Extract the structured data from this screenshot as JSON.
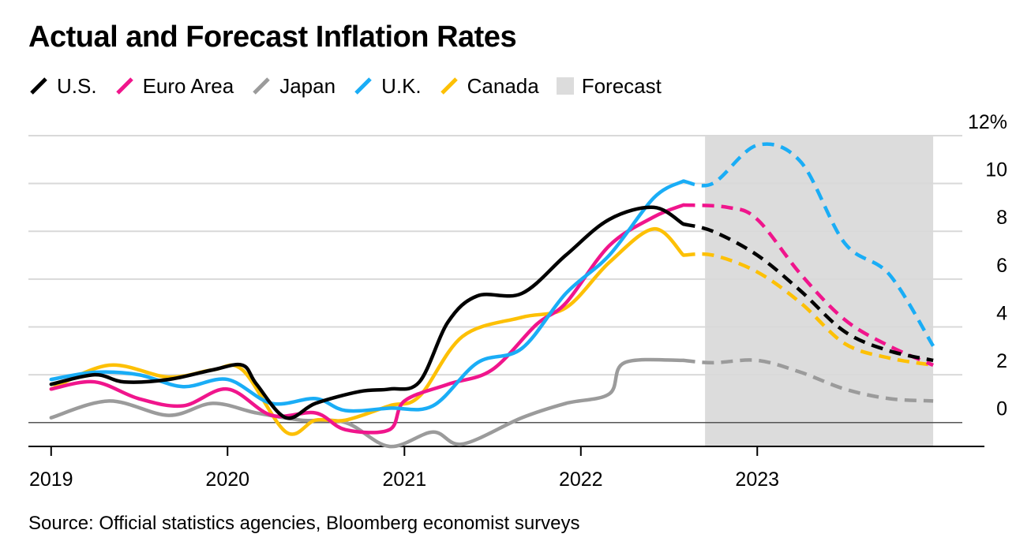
{
  "title": "Actual and Forecast Inflation Rates",
  "source": "Source: Official statistics agencies, Bloomberg economist surveys",
  "legend": [
    {
      "key": "us",
      "label": "U.S.",
      "color": "#000000",
      "icon": "slash-line-icon"
    },
    {
      "key": "euro",
      "label": "Euro Area",
      "color": "#f0158c",
      "icon": "slash-line-icon"
    },
    {
      "key": "japan",
      "label": "Japan",
      "color": "#9b9b9b",
      "icon": "slash-line-icon"
    },
    {
      "key": "uk",
      "label": "U.K.",
      "color": "#1aadf6",
      "icon": "slash-line-icon"
    },
    {
      "key": "canada",
      "label": "Canada",
      "color": "#fdc005",
      "icon": "slash-line-icon"
    },
    {
      "key": "forecast",
      "label": "Forecast",
      "color": "#dcdcdc",
      "icon": "square-swatch-icon"
    }
  ],
  "chart_data": {
    "type": "line",
    "title": "Actual and Forecast Inflation Rates",
    "x_unit": "date",
    "x_ticks": [
      {
        "date": "2019-01-01",
        "label": "2019"
      },
      {
        "date": "2020-01-01",
        "label": "2020"
      },
      {
        "date": "2021-01-01",
        "label": "2021"
      },
      {
        "date": "2022-01-01",
        "label": "2022"
      },
      {
        "date": "2023-01-01",
        "label": "2023"
      }
    ],
    "xlim": [
      "2018-11-15",
      "2024-04-15"
    ],
    "ylim": [
      -1,
      12
    ],
    "y_ticks": [
      {
        "value": 12,
        "label": "12%"
      },
      {
        "value": 10,
        "label": "10"
      },
      {
        "value": 8,
        "label": "8"
      },
      {
        "value": 6,
        "label": "6"
      },
      {
        "value": 4,
        "label": "4"
      },
      {
        "value": 2,
        "label": "2"
      },
      {
        "value": 0,
        "label": "0"
      }
    ],
    "y_axis_side": "right",
    "grid": true,
    "legend_position": "top-left",
    "forecast_region": {
      "start": "2022-09-15",
      "end": "2023-12-31"
    },
    "series": [
      {
        "name": "U.S.",
        "color": "#000000",
        "actual": [
          [
            "2019-01-01",
            1.6
          ],
          [
            "2019-04-01",
            2.0
          ],
          [
            "2019-06-01",
            1.7
          ],
          [
            "2019-09-01",
            1.8
          ],
          [
            "2019-12-01",
            2.2
          ],
          [
            "2020-02-01",
            2.4
          ],
          [
            "2020-03-01",
            1.6
          ],
          [
            "2020-05-01",
            0.2
          ],
          [
            "2020-07-01",
            0.8
          ],
          [
            "2020-10-01",
            1.3
          ],
          [
            "2020-12-01",
            1.4
          ],
          [
            "2021-02-01",
            1.7
          ],
          [
            "2021-04-01",
            4.2
          ],
          [
            "2021-06-01",
            5.3
          ],
          [
            "2021-09-01",
            5.4
          ],
          [
            "2021-12-01",
            7.0
          ],
          [
            "2022-03-01",
            8.5
          ],
          [
            "2022-06-01",
            9.0
          ],
          [
            "2022-08-01",
            8.3
          ]
        ],
        "forecast": [
          [
            "2022-08-01",
            8.3
          ],
          [
            "2022-10-01",
            8.0
          ],
          [
            "2023-01-01",
            7.0
          ],
          [
            "2023-04-01",
            5.5
          ],
          [
            "2023-07-01",
            3.8
          ],
          [
            "2023-10-01",
            3.0
          ],
          [
            "2023-12-31",
            2.6
          ]
        ]
      },
      {
        "name": "Euro Area",
        "color": "#f0158c",
        "actual": [
          [
            "2019-01-01",
            1.4
          ],
          [
            "2019-04-01",
            1.7
          ],
          [
            "2019-07-01",
            1.0
          ],
          [
            "2019-10-01",
            0.7
          ],
          [
            "2020-01-01",
            1.4
          ],
          [
            "2020-04-01",
            0.3
          ],
          [
            "2020-07-01",
            0.4
          ],
          [
            "2020-09-01",
            -0.3
          ],
          [
            "2020-12-01",
            -0.3
          ],
          [
            "2021-01-01",
            0.9
          ],
          [
            "2021-04-01",
            1.6
          ],
          [
            "2021-07-01",
            2.2
          ],
          [
            "2021-10-01",
            4.1
          ],
          [
            "2021-12-01",
            5.0
          ],
          [
            "2022-03-01",
            7.4
          ],
          [
            "2022-06-01",
            8.6
          ],
          [
            "2022-08-01",
            9.1
          ]
        ],
        "forecast": [
          [
            "2022-08-01",
            9.1
          ],
          [
            "2022-11-01",
            9.0
          ],
          [
            "2023-01-01",
            8.5
          ],
          [
            "2023-04-01",
            6.2
          ],
          [
            "2023-07-01",
            4.3
          ],
          [
            "2023-10-01",
            3.2
          ],
          [
            "2023-12-31",
            2.4
          ]
        ]
      },
      {
        "name": "Japan",
        "color": "#9b9b9b",
        "actual": [
          [
            "2019-01-01",
            0.2
          ],
          [
            "2019-05-01",
            0.9
          ],
          [
            "2019-09-01",
            0.3
          ],
          [
            "2019-12-01",
            0.8
          ],
          [
            "2020-03-01",
            0.4
          ],
          [
            "2020-06-01",
            0.1
          ],
          [
            "2020-09-01",
            0.0
          ],
          [
            "2020-12-01",
            -1.0
          ],
          [
            "2021-03-01",
            -0.4
          ],
          [
            "2021-05-01",
            -0.9
          ],
          [
            "2021-09-01",
            0.2
          ],
          [
            "2021-12-01",
            0.8
          ],
          [
            "2022-03-01",
            1.2
          ],
          [
            "2022-04-01",
            2.5
          ],
          [
            "2022-08-01",
            2.6
          ]
        ],
        "forecast": [
          [
            "2022-08-01",
            2.6
          ],
          [
            "2022-10-01",
            2.5
          ],
          [
            "2023-01-01",
            2.6
          ],
          [
            "2023-04-01",
            2.1
          ],
          [
            "2023-07-01",
            1.4
          ],
          [
            "2023-10-01",
            1.0
          ],
          [
            "2023-12-31",
            0.9
          ]
        ]
      },
      {
        "name": "U.K.",
        "color": "#1aadf6",
        "actual": [
          [
            "2019-01-01",
            1.8
          ],
          [
            "2019-04-01",
            2.1
          ],
          [
            "2019-07-01",
            2.0
          ],
          [
            "2019-10-01",
            1.5
          ],
          [
            "2020-01-01",
            1.8
          ],
          [
            "2020-04-01",
            0.8
          ],
          [
            "2020-07-01",
            1.0
          ],
          [
            "2020-09-01",
            0.5
          ],
          [
            "2020-12-01",
            0.6
          ],
          [
            "2021-03-01",
            0.7
          ],
          [
            "2021-06-01",
            2.5
          ],
          [
            "2021-09-01",
            3.1
          ],
          [
            "2021-12-01",
            5.4
          ],
          [
            "2022-03-01",
            7.0
          ],
          [
            "2022-06-01",
            9.4
          ],
          [
            "2022-08-01",
            10.1
          ]
        ],
        "forecast": [
          [
            "2022-08-01",
            10.1
          ],
          [
            "2022-10-01",
            10.0
          ],
          [
            "2023-01-01",
            11.6
          ],
          [
            "2023-04-01",
            10.9
          ],
          [
            "2023-07-01",
            7.5
          ],
          [
            "2023-10-01",
            6.2
          ],
          [
            "2023-12-31",
            3.2
          ]
        ]
      },
      {
        "name": "Canada",
        "color": "#fdc005",
        "actual": [
          [
            "2019-01-01",
            1.4
          ],
          [
            "2019-05-01",
            2.4
          ],
          [
            "2019-09-01",
            1.9
          ],
          [
            "2019-12-01",
            2.2
          ],
          [
            "2020-02-01",
            2.2
          ],
          [
            "2020-05-01",
            -0.4
          ],
          [
            "2020-07-01",
            0.1
          ],
          [
            "2020-09-01",
            0.1
          ],
          [
            "2020-12-01",
            0.7
          ],
          [
            "2021-02-01",
            1.1
          ],
          [
            "2021-05-01",
            3.6
          ],
          [
            "2021-09-01",
            4.4
          ],
          [
            "2021-12-01",
            4.8
          ],
          [
            "2022-03-01",
            6.7
          ],
          [
            "2022-06-01",
            8.1
          ],
          [
            "2022-08-01",
            7.0
          ]
        ],
        "forecast": [
          [
            "2022-08-01",
            7.0
          ],
          [
            "2022-10-01",
            7.0
          ],
          [
            "2023-01-01",
            6.3
          ],
          [
            "2023-04-01",
            5.0
          ],
          [
            "2023-07-01",
            3.3
          ],
          [
            "2023-10-01",
            2.7
          ],
          [
            "2023-12-31",
            2.4
          ]
        ]
      }
    ]
  }
}
